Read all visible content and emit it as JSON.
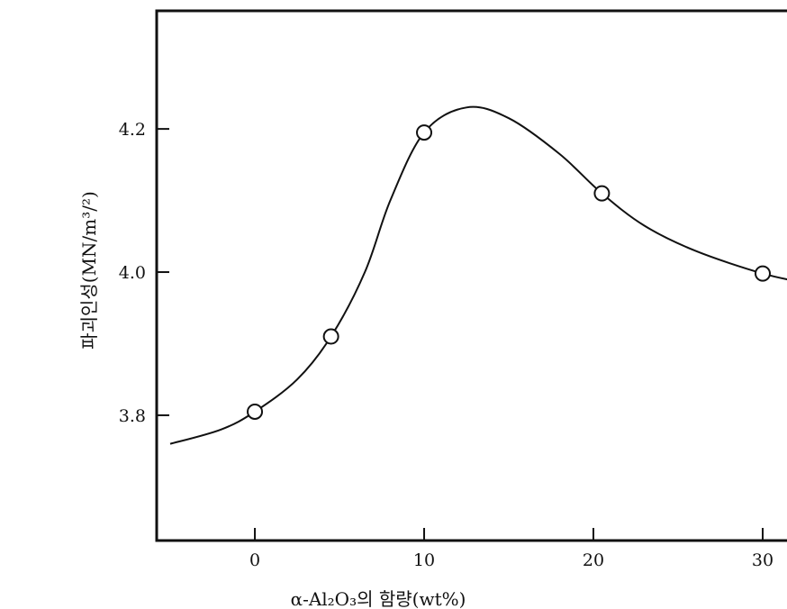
{
  "chart_data": {
    "type": "scatter",
    "title": "",
    "xlabel": "α-Al₂O₃의 함량(wt%)",
    "ylabel": "파괴인성(MN/m³/²)",
    "xlim": [
      -5.8,
      32.5
    ],
    "ylim": [
      3.625,
      4.365
    ],
    "x_ticks": [
      0,
      10,
      20,
      30
    ],
    "y_ticks": [
      3.8,
      4.0,
      4.2
    ],
    "x_tick_labels": [
      "0",
      "10",
      "20",
      "30"
    ],
    "y_tick_labels": [
      "3.8",
      "4.0",
      "4.2"
    ],
    "grid": false,
    "legend": "none",
    "series": [
      {
        "marker": "open-circle",
        "points": [
          {
            "x": 0,
            "y": 3.805
          },
          {
            "x": 4.5,
            "y": 3.91
          },
          {
            "x": 10,
            "y": 4.195
          },
          {
            "x": 20.5,
            "y": 4.11
          },
          {
            "x": 30,
            "y": 3.998
          }
        ]
      }
    ],
    "fit_curve": {
      "style": "smooth",
      "points": [
        {
          "x": -5,
          "y": 3.76
        },
        {
          "x": -2,
          "y": 3.78
        },
        {
          "x": 0,
          "y": 3.805
        },
        {
          "x": 2.5,
          "y": 3.85
        },
        {
          "x": 4.5,
          "y": 3.91
        },
        {
          "x": 6.5,
          "y": 4.0
        },
        {
          "x": 8,
          "y": 4.1
        },
        {
          "x": 10,
          "y": 4.195
        },
        {
          "x": 12.5,
          "y": 4.23
        },
        {
          "x": 15,
          "y": 4.215
        },
        {
          "x": 18,
          "y": 4.165
        },
        {
          "x": 20.5,
          "y": 4.11
        },
        {
          "x": 23,
          "y": 4.065
        },
        {
          "x": 26,
          "y": 4.03
        },
        {
          "x": 30,
          "y": 3.998
        },
        {
          "x": 32.5,
          "y": 3.985
        }
      ]
    }
  }
}
